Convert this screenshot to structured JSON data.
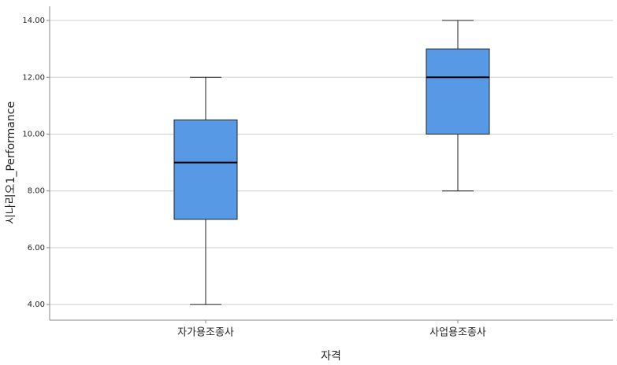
{
  "chart_data": {
    "type": "box",
    "x_label": "자격",
    "y_label": "시나리오1_Performance",
    "categories": [
      "자가용조종사",
      "사업용조종사"
    ],
    "boxes": [
      {
        "min": 4,
        "q1": 7,
        "median": 9,
        "q3": 10.5,
        "max": 12
      },
      {
        "min": 8,
        "q1": 10,
        "median": 12,
        "q3": 13,
        "max": 14
      }
    ],
    "color": "#5799e5",
    "ylim": [
      3.45,
      14.5
    ],
    "yticks": [
      {
        "value": 4,
        "label": "4.00"
      },
      {
        "value": 6,
        "label": "6.00"
      },
      {
        "value": 8,
        "label": "8.00"
      },
      {
        "value": 10,
        "label": "10.00"
      },
      {
        "value": 12,
        "label": "12.00"
      },
      {
        "value": 14,
        "label": "14.00"
      }
    ],
    "grid": true
  }
}
